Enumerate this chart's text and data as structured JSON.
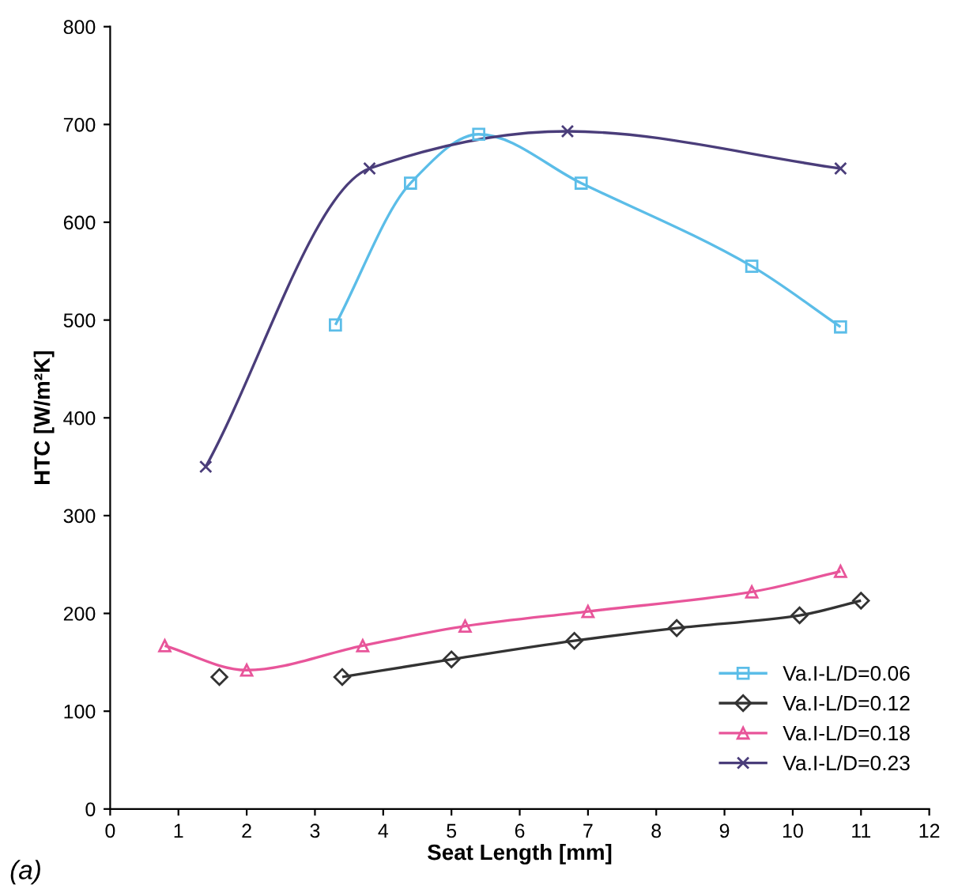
{
  "chart_data": {
    "type": "line",
    "xlabel": "Seat Length [mm]",
    "ylabel": "HTC [W/m²K]",
    "xlim": [
      0,
      12
    ],
    "xticks": [
      0,
      1,
      2,
      3,
      4,
      5,
      6,
      7,
      8,
      9,
      10,
      11,
      12
    ],
    "ylim": [
      0,
      800
    ],
    "yticks": [
      0,
      100,
      200,
      300,
      400,
      500,
      600,
      700,
      800
    ],
    "grid": false,
    "legend": "bottom right",
    "annotations": [
      "(a)"
    ],
    "series": [
      {
        "name": "Va.I-L/D=0.06",
        "color": "#5bbde8",
        "marker": "square",
        "x": [
          3.3,
          4.4,
          5.4,
          6.9,
          9.4,
          10.7
        ],
        "values": [
          495,
          640,
          690,
          640,
          555,
          493
        ]
      },
      {
        "name": "Va.I-L/D=0.12",
        "color": "#333333",
        "marker": "diamond",
        "x": [
          1.6,
          2.5,
          3.4,
          5.0,
          6.8,
          8.3,
          10.1,
          11.0
        ],
        "values": [
          135,
          null,
          135,
          153,
          172,
          185,
          198,
          213
        ]
      },
      {
        "name": "Va.I-L/D=0.18",
        "color": "#e8559a",
        "marker": "triangle",
        "x": [
          0.8,
          2.0,
          3.7,
          5.2,
          7.0,
          9.4,
          10.7
        ],
        "values": [
          167,
          142,
          167,
          187,
          202,
          222,
          243
        ]
      },
      {
        "name": "Va.I-L/D=0.23",
        "color": "#4a3d7a",
        "marker": "cross",
        "x": [
          1.4,
          3.8,
          6.7,
          10.7
        ],
        "values": [
          350,
          655,
          693,
          655
        ]
      }
    ]
  }
}
